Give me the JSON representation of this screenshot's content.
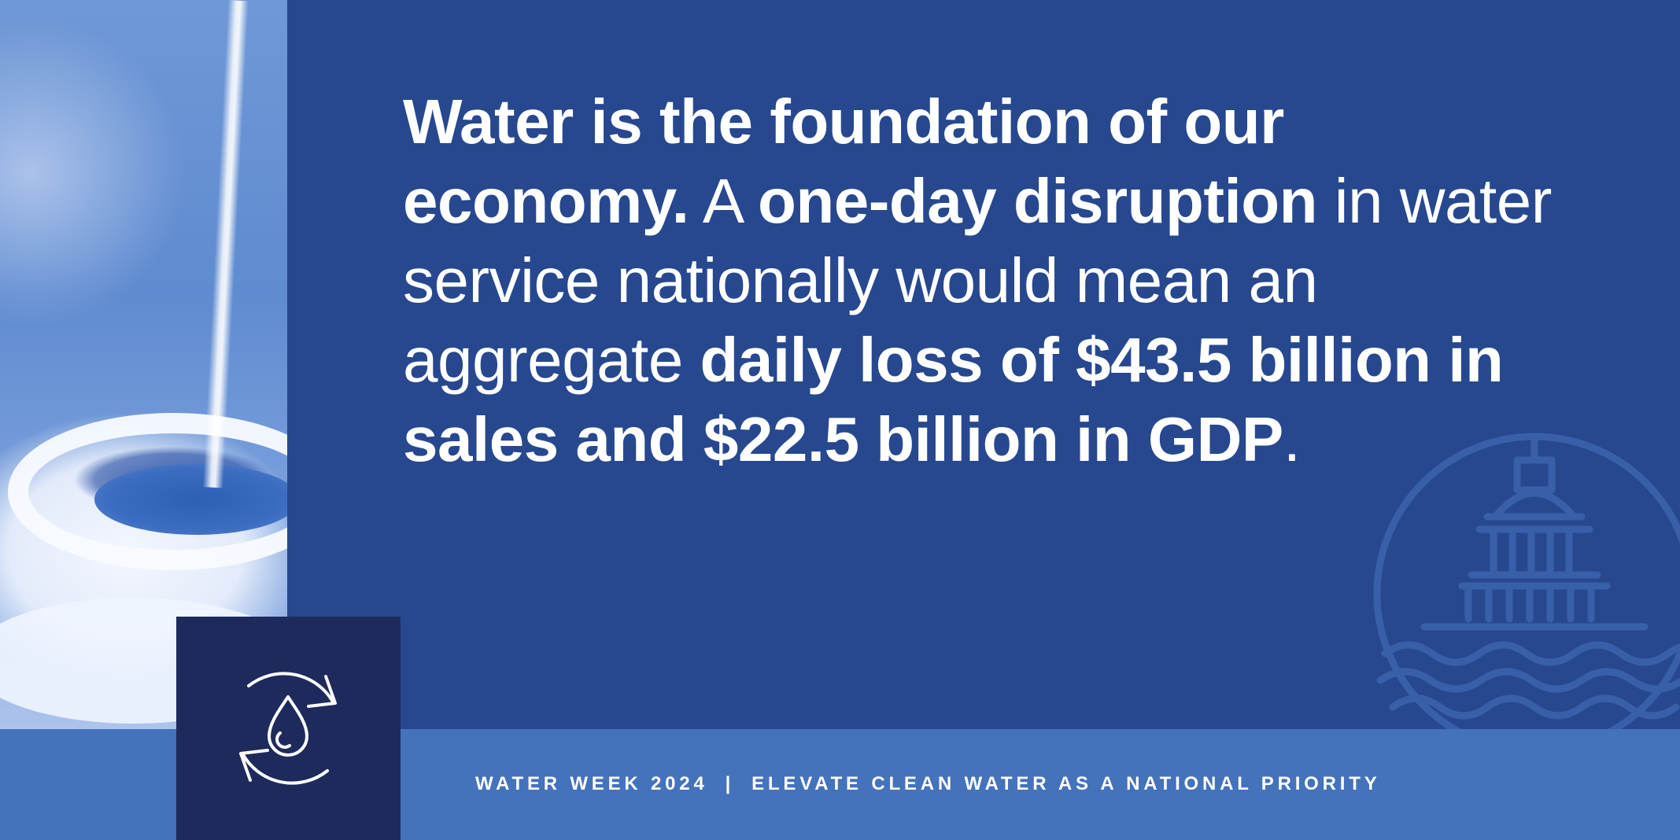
{
  "quote": {
    "parts": [
      {
        "text": "Water is the foundation of our economy.",
        "weight": "bold"
      },
      {
        "text": " A ",
        "weight": "light"
      },
      {
        "text": "one-day disruption",
        "weight": "bold"
      },
      {
        "text": " in water service nationally would mean an aggregate ",
        "weight": "light"
      },
      {
        "text": "daily loss of $43.5 billion in sales and $22.5 billion in GDP",
        "weight": "bold"
      },
      {
        "text": ".",
        "weight": "light"
      }
    ]
  },
  "footer": {
    "event": "WATER WEEK 2024",
    "separator": "|",
    "slogan": "ELEVATE CLEAN WATER AS A NATIONAL PRIORITY"
  },
  "icons": {
    "tile_icon": "water-drop-recycle-icon",
    "emblem": "capitol-waves-emblem"
  },
  "colors": {
    "background": "#27488f",
    "footer_band": "#4472bb",
    "icon_tile": "#1f2a5c",
    "text": "#ffffff"
  }
}
